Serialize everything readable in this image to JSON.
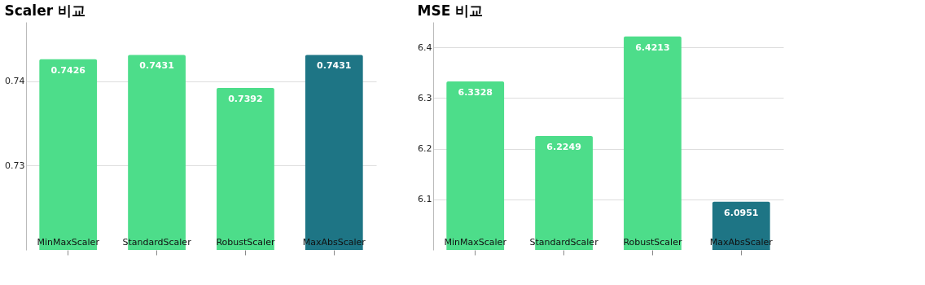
{
  "chart_data": [
    {
      "type": "bar",
      "title": "Scaler 비교",
      "categories": [
        "MinMaxScaler",
        "StandardScaler",
        "RobustScaler",
        "MaxAbsScaler"
      ],
      "values": [
        0.7426,
        0.7431,
        0.7392,
        0.7431
      ],
      "colors": [
        "#4ddd8a",
        "#4ddd8a",
        "#4ddd8a",
        "#1e7585"
      ],
      "ylim": [
        0.72,
        0.747
      ],
      "yticks": [
        {
          "value": 0.73,
          "label": "0.73"
        },
        {
          "value": 0.74,
          "label": "0.74"
        }
      ],
      "grid": "y",
      "data_labels": true
    },
    {
      "type": "bar",
      "title": "MSE 비교",
      "categories": [
        "MinMaxScaler",
        "StandardScaler",
        "RobustScaler",
        "MaxAbsScaler"
      ],
      "values": [
        6.3328,
        6.2249,
        6.4213,
        6.0951
      ],
      "colors": [
        "#4ddd8a",
        "#4ddd8a",
        "#4ddd8a",
        "#1e7585"
      ],
      "ylim": [
        6.0,
        6.45
      ],
      "yticks": [
        {
          "value": 6.1,
          "label": "6.1"
        },
        {
          "value": 6.2,
          "label": "6.2"
        },
        {
          "value": 6.3,
          "label": "6.3"
        },
        {
          "value": 6.4,
          "label": "6.4"
        }
      ],
      "grid": "y",
      "data_labels": true
    }
  ]
}
